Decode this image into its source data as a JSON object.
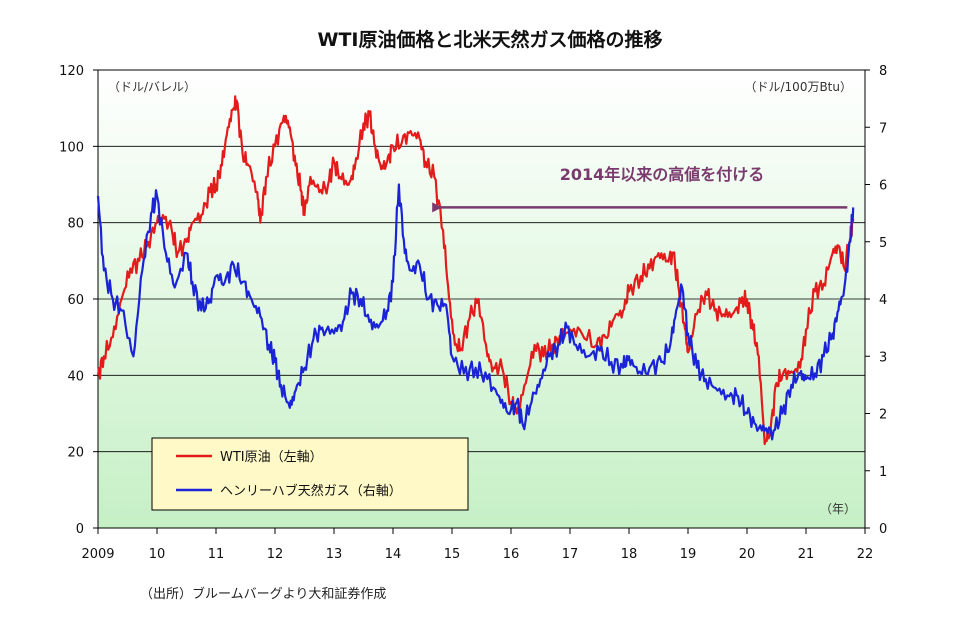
{
  "chart_data": {
    "type": "line",
    "title": "WTI原油価格と北米天然ガス価格の推移",
    "left_unit": "（ドル/バレル）",
    "right_unit": "（ドル/100万Btu）",
    "x_unit": "（年）",
    "source": "（出所）ブルームバーグより大和証券作成",
    "annotation": "2014年以来の高値を付ける",
    "x_ticks": [
      "2009",
      "10",
      "11",
      "12",
      "13",
      "14",
      "15",
      "16",
      "17",
      "18",
      "19",
      "20",
      "21",
      "22"
    ],
    "x_range": [
      2009,
      2022
    ],
    "y_left_ticks": [
      "0",
      "20",
      "40",
      "60",
      "80",
      "100",
      "120"
    ],
    "y_left_range": [
      0,
      120
    ],
    "y_right_ticks": [
      "0",
      "1",
      "2",
      "3",
      "4",
      "5",
      "6",
      "7",
      "8"
    ],
    "y_right_range": [
      0,
      8
    ],
    "gridlines_left": [
      20,
      40,
      60,
      80,
      100
    ],
    "annotation_arrow": {
      "from_x": 2021.7,
      "to_x": 2014.8,
      "y_left": 84
    },
    "series": [
      {
        "name": "WTI原油（左軸）",
        "axis": "left",
        "color": "#e31b1b",
        "x": [
          2009.0,
          2009.1,
          2009.25,
          2009.4,
          2009.55,
          2009.7,
          2009.85,
          2010.0,
          2010.1,
          2010.25,
          2010.35,
          2010.5,
          2010.6,
          2010.75,
          2010.9,
          2011.0,
          2011.1,
          2011.2,
          2011.3,
          2011.35,
          2011.45,
          2011.55,
          2011.7,
          2011.75,
          2011.85,
          2012.0,
          2012.15,
          2012.25,
          2012.35,
          2012.45,
          2012.5,
          2012.6,
          2012.75,
          2012.9,
          2013.0,
          2013.1,
          2013.25,
          2013.35,
          2013.5,
          2013.6,
          2013.7,
          2013.8,
          2013.9,
          2014.0,
          2014.15,
          2014.3,
          2014.45,
          2014.55,
          2014.7,
          2014.85,
          2014.95,
          2015.05,
          2015.15,
          2015.3,
          2015.45,
          2015.6,
          2015.7,
          2015.85,
          2016.0,
          2016.1,
          2016.25,
          2016.4,
          2016.55,
          2016.7,
          2016.85,
          2017.0,
          2017.2,
          2017.45,
          2017.6,
          2017.75,
          2017.9,
          2018.0,
          2018.2,
          2018.35,
          2018.5,
          2018.65,
          2018.75,
          2018.85,
          2018.95,
          2019.0,
          2019.15,
          2019.3,
          2019.45,
          2019.6,
          2019.75,
          2019.9,
          2020.0,
          2020.1,
          2020.2,
          2020.3,
          2020.4,
          2020.5,
          2020.6,
          2020.75,
          2020.9,
          2021.0,
          2021.15,
          2021.3,
          2021.45,
          2021.55,
          2021.65,
          2021.75,
          2021.8
        ],
        "values": [
          40,
          45,
          50,
          60,
          68,
          70,
          75,
          80,
          82,
          78,
          72,
          75,
          80,
          82,
          88,
          90,
          95,
          105,
          110,
          112,
          98,
          95,
          88,
          80,
          92,
          100,
          108,
          105,
          95,
          88,
          82,
          92,
          88,
          90,
          96,
          92,
          90,
          94,
          106,
          108,
          100,
          94,
          96,
          100,
          101,
          104,
          102,
          96,
          92,
          78,
          60,
          48,
          47,
          55,
          60,
          45,
          42,
          42,
          33,
          30,
          38,
          48,
          45,
          48,
          50,
          52,
          51,
          48,
          50,
          55,
          57,
          62,
          66,
          68,
          72,
          70,
          72,
          62,
          52,
          46,
          56,
          62,
          57,
          56,
          56,
          59,
          60,
          52,
          45,
          22,
          26,
          38,
          40,
          41,
          42,
          52,
          62,
          64,
          72,
          74,
          68,
          76,
          81
        ]
      },
      {
        "name": "ヘンリーハブ天然ガス（右軸）",
        "axis": "right",
        "color": "#1a23d6",
        "x": [
          2009.0,
          2009.1,
          2009.25,
          2009.4,
          2009.6,
          2009.75,
          2009.9,
          2010.0,
          2010.15,
          2010.3,
          2010.5,
          2010.6,
          2010.75,
          2010.9,
          2011.0,
          2011.15,
          2011.3,
          2011.45,
          2011.6,
          2011.75,
          2011.9,
          2012.0,
          2012.1,
          2012.25,
          2012.35,
          2012.5,
          2012.65,
          2012.8,
          2013.0,
          2013.15,
          2013.3,
          2013.45,
          2013.6,
          2013.75,
          2013.9,
          2014.0,
          2014.1,
          2014.2,
          2014.3,
          2014.45,
          2014.6,
          2014.75,
          2014.9,
          2015.0,
          2015.2,
          2015.4,
          2015.6,
          2015.8,
          2015.95,
          2016.1,
          2016.2,
          2016.35,
          2016.5,
          2016.65,
          2016.8,
          2016.95,
          2017.1,
          2017.3,
          2017.5,
          2017.7,
          2017.9,
          2018.0,
          2018.15,
          2018.35,
          2018.55,
          2018.7,
          2018.8,
          2018.9,
          2019.0,
          2019.15,
          2019.3,
          2019.5,
          2019.7,
          2019.85,
          2020.0,
          2020.15,
          2020.3,
          2020.45,
          2020.6,
          2020.75,
          2020.9,
          2021.0,
          2021.15,
          2021.3,
          2021.45,
          2021.55,
          2021.65,
          2021.75,
          2021.8
        ],
        "values": [
          5.8,
          4.5,
          4.0,
          3.8,
          3.0,
          4.5,
          5.5,
          5.8,
          4.8,
          4.2,
          4.8,
          4.3,
          3.8,
          4.0,
          4.4,
          4.3,
          4.6,
          4.3,
          4.0,
          3.7,
          3.2,
          2.9,
          2.5,
          2.1,
          2.4,
          2.8,
          3.3,
          3.5,
          3.4,
          3.6,
          4.1,
          4.0,
          3.6,
          3.5,
          3.8,
          4.3,
          6.0,
          4.8,
          4.5,
          4.6,
          4.0,
          3.9,
          3.9,
          3.0,
          2.7,
          2.8,
          2.6,
          2.3,
          2.0,
          2.2,
          1.8,
          2.2,
          2.6,
          3.0,
          3.2,
          3.5,
          3.2,
          3.0,
          3.1,
          2.9,
          2.8,
          3.0,
          2.7,
          2.8,
          2.9,
          3.2,
          3.8,
          4.2,
          3.4,
          2.8,
          2.6,
          2.4,
          2.3,
          2.3,
          2.0,
          1.8,
          1.7,
          1.7,
          2.0,
          2.5,
          2.7,
          2.6,
          2.7,
          3.0,
          3.4,
          3.8,
          4.2,
          5.0,
          5.6
        ]
      }
    ],
    "legend": [
      "WTI原油（左軸）",
      "ヘンリーハブ天然ガス（右軸）"
    ]
  }
}
